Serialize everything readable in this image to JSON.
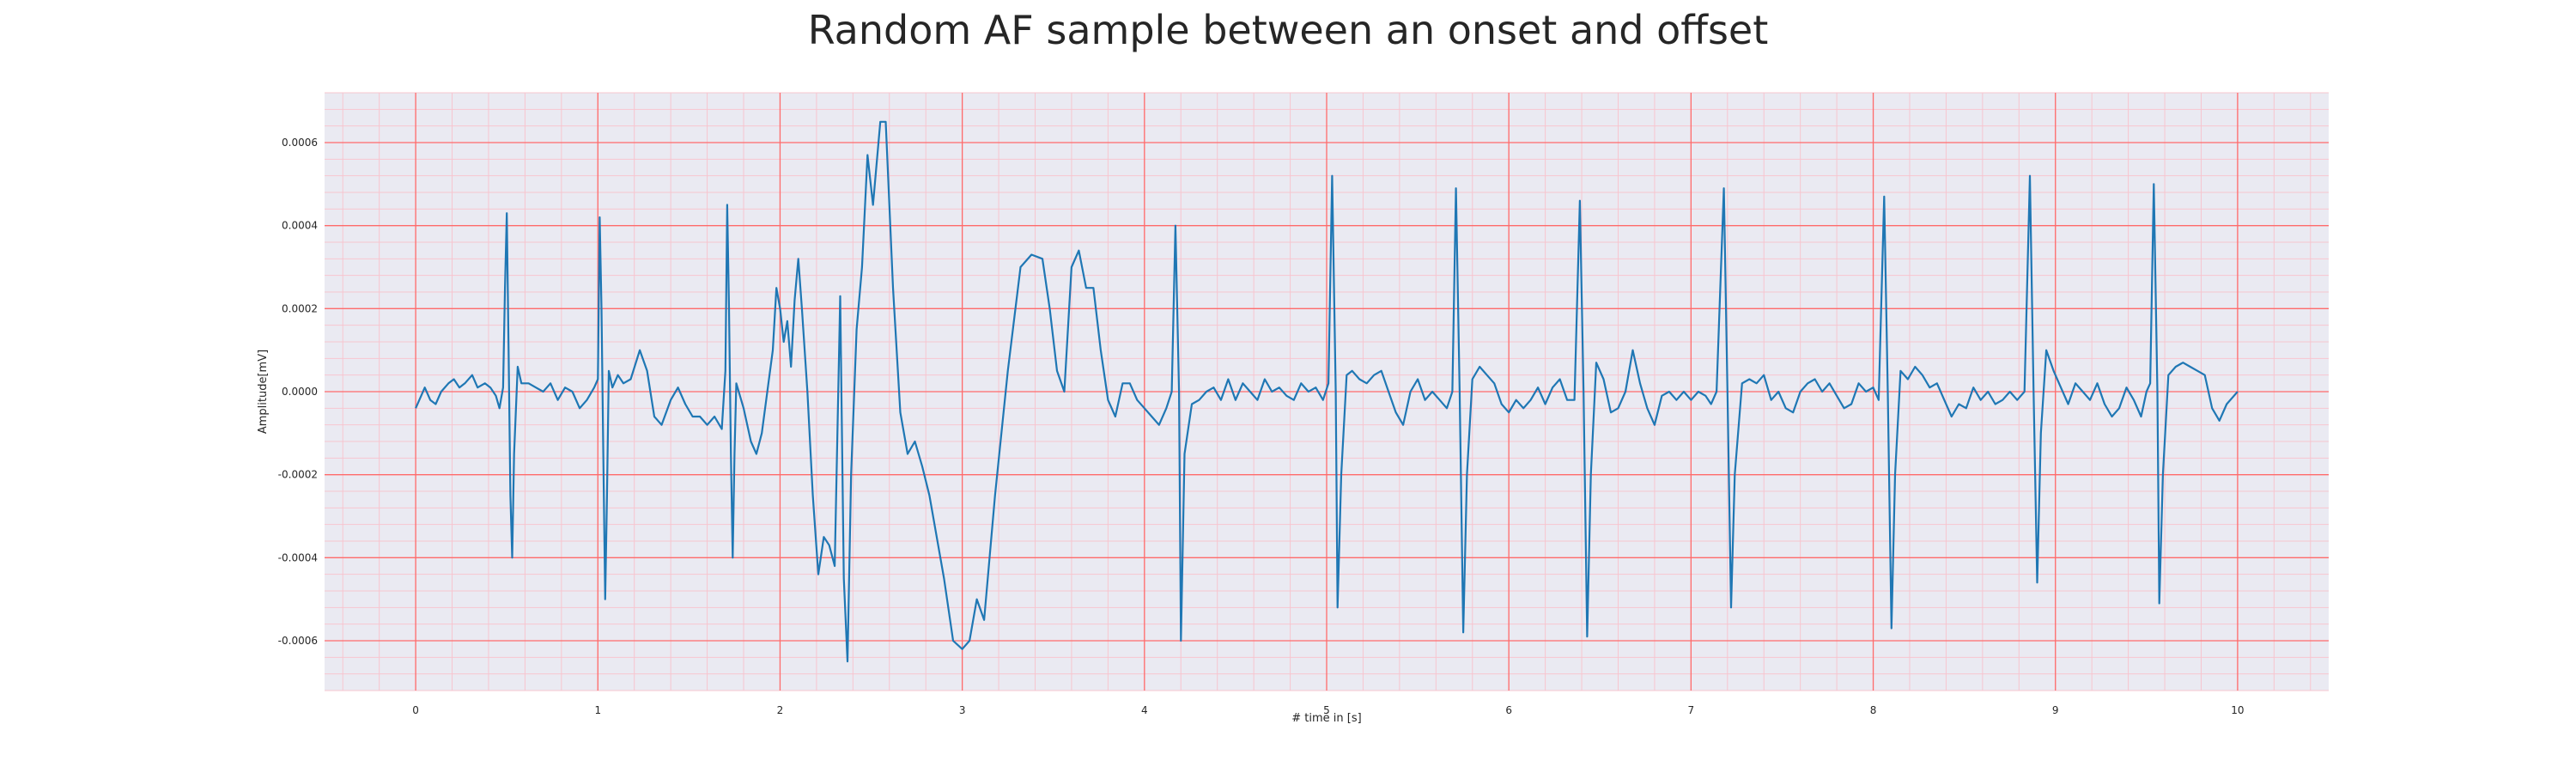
{
  "chart_data": {
    "type": "line",
    "title": "Random AF sample between an onset and offset",
    "xlabel": "# time in [s]",
    "ylabel": "Amplitude[mV]",
    "xlim": [
      -0.5,
      10.5
    ],
    "ylim": [
      -0.00072,
      0.00072
    ],
    "x_ticks": [
      0,
      1,
      2,
      3,
      4,
      5,
      6,
      7,
      8,
      9,
      10
    ],
    "x_tick_labels": [
      "0",
      "1",
      "2",
      "3",
      "4",
      "5",
      "6",
      "7",
      "8",
      "9",
      "10"
    ],
    "y_ticks": [
      -0.0006,
      -0.0004,
      -0.0002,
      0.0,
      0.0002,
      0.0004,
      0.0006
    ],
    "y_tick_labels": [
      "-0.0006",
      "-0.0004",
      "-0.0002",
      "0.0000",
      "0.0002",
      "0.0004",
      "0.0006"
    ],
    "grid": true,
    "minor_grid": true,
    "colors": {
      "plot_background": "#eaeaf2",
      "major_grid": "#ff6b6b",
      "minor_grid": "#f7c5cf",
      "line": "#1f77b4"
    },
    "series": [
      {
        "points": [
          [
            0.0,
            -4e-05
          ],
          [
            0.03,
            -1e-05
          ],
          [
            0.05,
            1e-05
          ],
          [
            0.08,
            -2e-05
          ],
          [
            0.11,
            -3e-05
          ],
          [
            0.14,
            0.0
          ],
          [
            0.18,
            2e-05
          ],
          [
            0.21,
            3e-05
          ],
          [
            0.24,
            1e-05
          ],
          [
            0.27,
            2e-05
          ],
          [
            0.31,
            4e-05
          ],
          [
            0.34,
            1e-05
          ],
          [
            0.38,
            2e-05
          ],
          [
            0.41,
            1e-05
          ],
          [
            0.44,
            -1e-05
          ],
          [
            0.46,
            -4e-05
          ],
          [
            0.48,
            1e-05
          ],
          [
            0.49,
            0.00025
          ],
          [
            0.5,
            0.00043
          ],
          [
            0.51,
            0.0001
          ],
          [
            0.52,
            -0.00025
          ],
          [
            0.53,
            -0.0004
          ],
          [
            0.54,
            -0.00015
          ],
          [
            0.56,
            6e-05
          ],
          [
            0.58,
            2e-05
          ],
          [
            0.62,
            2e-05
          ],
          [
            0.66,
            1e-05
          ],
          [
            0.7,
            0.0
          ],
          [
            0.74,
            2e-05
          ],
          [
            0.78,
            -2e-05
          ],
          [
            0.82,
            1e-05
          ],
          [
            0.86,
            0.0
          ],
          [
            0.9,
            -4e-05
          ],
          [
            0.94,
            -2e-05
          ],
          [
            0.98,
            1e-05
          ],
          [
            1.0,
            3e-05
          ],
          [
            1.01,
            0.00042
          ],
          [
            1.02,
            0.0002
          ],
          [
            1.03,
            -0.00015
          ],
          [
            1.04,
            -0.0005
          ],
          [
            1.05,
            -0.00025
          ],
          [
            1.06,
            5e-05
          ],
          [
            1.08,
            1e-05
          ],
          [
            1.11,
            4e-05
          ],
          [
            1.14,
            2e-05
          ],
          [
            1.18,
            3e-05
          ],
          [
            1.23,
            0.0001
          ],
          [
            1.27,
            5e-05
          ],
          [
            1.31,
            -6e-05
          ],
          [
            1.35,
            -8e-05
          ],
          [
            1.4,
            -2e-05
          ],
          [
            1.44,
            1e-05
          ],
          [
            1.48,
            -3e-05
          ],
          [
            1.52,
            -6e-05
          ],
          [
            1.56,
            -6e-05
          ],
          [
            1.6,
            -8e-05
          ],
          [
            1.64,
            -6e-05
          ],
          [
            1.68,
            -9e-05
          ],
          [
            1.7,
            5e-05
          ],
          [
            1.71,
            0.00045
          ],
          [
            1.72,
            0.0002
          ],
          [
            1.73,
            -0.00015
          ],
          [
            1.74,
            -0.0004
          ],
          [
            1.75,
            -0.00015
          ],
          [
            1.76,
            2e-05
          ],
          [
            1.8,
            -4e-05
          ],
          [
            1.84,
            -0.00012
          ],
          [
            1.87,
            -0.00015
          ],
          [
            1.9,
            -0.0001
          ],
          [
            1.93,
            0.0
          ],
          [
            1.96,
            0.0001
          ],
          [
            1.98,
            0.00025
          ],
          [
            2.0,
            0.0002
          ],
          [
            2.02,
            0.00012
          ],
          [
            2.04,
            0.00017
          ],
          [
            2.06,
            6e-05
          ],
          [
            2.08,
            0.00022
          ],
          [
            2.1,
            0.00032
          ],
          [
            2.12,
            0.0002
          ],
          [
            2.15,
            0.0
          ],
          [
            2.18,
            -0.00025
          ],
          [
            2.21,
            -0.00044
          ],
          [
            2.24,
            -0.00035
          ],
          [
            2.27,
            -0.00037
          ],
          [
            2.3,
            -0.00042
          ],
          [
            2.33,
            0.00023
          ],
          [
            2.35,
            -0.00045
          ],
          [
            2.37,
            -0.00065
          ],
          [
            2.39,
            -0.0002
          ],
          [
            2.42,
            0.00015
          ],
          [
            2.45,
            0.0003
          ],
          [
            2.48,
            0.00057
          ],
          [
            2.51,
            0.00045
          ],
          [
            2.55,
            0.00065
          ],
          [
            2.58,
            0.00065
          ],
          [
            2.62,
            0.00025
          ],
          [
            2.66,
            -5e-05
          ],
          [
            2.7,
            -0.00015
          ],
          [
            2.74,
            -0.00012
          ],
          [
            2.78,
            -0.00018
          ],
          [
            2.82,
            -0.00025
          ],
          [
            2.86,
            -0.00035
          ],
          [
            2.9,
            -0.00045
          ],
          [
            2.95,
            -0.0006
          ],
          [
            3.0,
            -0.00062
          ],
          [
            3.04,
            -0.0006
          ],
          [
            3.08,
            -0.0005
          ],
          [
            3.12,
            -0.00055
          ],
          [
            3.18,
            -0.00025
          ],
          [
            3.25,
            5e-05
          ],
          [
            3.32,
            0.0003
          ],
          [
            3.38,
            0.00033
          ],
          [
            3.44,
            0.00032
          ],
          [
            3.48,
            0.0002
          ],
          [
            3.52,
            5e-05
          ],
          [
            3.56,
            0.0
          ],
          [
            3.6,
            0.0003
          ],
          [
            3.64,
            0.00034
          ],
          [
            3.68,
            0.00025
          ],
          [
            3.72,
            0.00025
          ],
          [
            3.76,
            0.0001
          ],
          [
            3.8,
            -2e-05
          ],
          [
            3.84,
            -6e-05
          ],
          [
            3.88,
            2e-05
          ],
          [
            3.92,
            2e-05
          ],
          [
            3.96,
            -2e-05
          ],
          [
            4.0,
            -4e-05
          ],
          [
            4.04,
            -6e-05
          ],
          [
            4.08,
            -8e-05
          ],
          [
            4.12,
            -4e-05
          ],
          [
            4.15,
            0.0
          ],
          [
            4.17,
            0.0004
          ],
          [
            4.19,
            0.0
          ],
          [
            4.2,
            -0.0006
          ],
          [
            4.22,
            -0.00015
          ],
          [
            4.26,
            -3e-05
          ],
          [
            4.3,
            -2e-05
          ],
          [
            4.34,
            0.0
          ],
          [
            4.38,
            1e-05
          ],
          [
            4.42,
            -2e-05
          ],
          [
            4.46,
            3e-05
          ],
          [
            4.5,
            -2e-05
          ],
          [
            4.54,
            2e-05
          ],
          [
            4.58,
            0.0
          ],
          [
            4.62,
            -2e-05
          ],
          [
            4.66,
            3e-05
          ],
          [
            4.7,
            0.0
          ],
          [
            4.74,
            1e-05
          ],
          [
            4.78,
            -1e-05
          ],
          [
            4.82,
            -2e-05
          ],
          [
            4.86,
            2e-05
          ],
          [
            4.9,
            0.0
          ],
          [
            4.94,
            1e-05
          ],
          [
            4.98,
            -2e-05
          ],
          [
            5.01,
            2e-05
          ],
          [
            5.03,
            0.00052
          ],
          [
            5.05,
            0.0
          ],
          [
            5.06,
            -0.00052
          ],
          [
            5.08,
            -0.0002
          ],
          [
            5.11,
            4e-05
          ],
          [
            5.14,
            5e-05
          ],
          [
            5.18,
            3e-05
          ],
          [
            5.22,
            2e-05
          ],
          [
            5.26,
            4e-05
          ],
          [
            5.3,
            5e-05
          ],
          [
            5.34,
            0.0
          ],
          [
            5.38,
            -5e-05
          ],
          [
            5.42,
            -8e-05
          ],
          [
            5.46,
            0.0
          ],
          [
            5.5,
            3e-05
          ],
          [
            5.54,
            -2e-05
          ],
          [
            5.58,
            0.0
          ],
          [
            5.62,
            -2e-05
          ],
          [
            5.66,
            -4e-05
          ],
          [
            5.69,
            0.0
          ],
          [
            5.71,
            0.00049
          ],
          [
            5.73,
            0.0
          ],
          [
            5.75,
            -0.00058
          ],
          [
            5.77,
            -0.0002
          ],
          [
            5.8,
            3e-05
          ],
          [
            5.84,
            6e-05
          ],
          [
            5.88,
            4e-05
          ],
          [
            5.92,
            2e-05
          ],
          [
            5.96,
            -3e-05
          ],
          [
            6.0,
            -5e-05
          ],
          [
            6.04,
            -2e-05
          ],
          [
            6.08,
            -4e-05
          ],
          [
            6.12,
            -2e-05
          ],
          [
            6.16,
            1e-05
          ],
          [
            6.2,
            -3e-05
          ],
          [
            6.24,
            1e-05
          ],
          [
            6.28,
            3e-05
          ],
          [
            6.32,
            -2e-05
          ],
          [
            6.36,
            -2e-05
          ],
          [
            6.39,
            0.00046
          ],
          [
            6.41,
            0.0
          ],
          [
            6.43,
            -0.00059
          ],
          [
            6.45,
            -0.0002
          ],
          [
            6.48,
            7e-05
          ],
          [
            6.52,
            3e-05
          ],
          [
            6.56,
            -5e-05
          ],
          [
            6.6,
            -4e-05
          ],
          [
            6.64,
            0.0
          ],
          [
            6.68,
            0.0001
          ],
          [
            6.72,
            2e-05
          ],
          [
            6.76,
            -4e-05
          ],
          [
            6.8,
            -8e-05
          ],
          [
            6.84,
            -1e-05
          ],
          [
            6.88,
            0.0
          ],
          [
            6.92,
            -2e-05
          ],
          [
            6.96,
            0.0
          ],
          [
            7.0,
            -2e-05
          ],
          [
            7.04,
            0.0
          ],
          [
            7.08,
            -1e-05
          ],
          [
            7.11,
            -3e-05
          ],
          [
            7.14,
            0.0
          ],
          [
            7.18,
            0.00049
          ],
          [
            7.2,
            0.0
          ],
          [
            7.22,
            -0.00052
          ],
          [
            7.24,
            -0.0002
          ],
          [
            7.28,
            2e-05
          ],
          [
            7.32,
            3e-05
          ],
          [
            7.36,
            2e-05
          ],
          [
            7.4,
            4e-05
          ],
          [
            7.44,
            -2e-05
          ],
          [
            7.48,
            0.0
          ],
          [
            7.52,
            -4e-05
          ],
          [
            7.56,
            -5e-05
          ],
          [
            7.6,
            0.0
          ],
          [
            7.64,
            2e-05
          ],
          [
            7.68,
            3e-05
          ],
          [
            7.72,
            0.0
          ],
          [
            7.76,
            2e-05
          ],
          [
            7.8,
            -1e-05
          ],
          [
            7.84,
            -4e-05
          ],
          [
            7.88,
            -3e-05
          ],
          [
            7.92,
            2e-05
          ],
          [
            7.96,
            0.0
          ],
          [
            8.0,
            1e-05
          ],
          [
            8.03,
            -2e-05
          ],
          [
            8.06,
            0.00047
          ],
          [
            8.08,
            0.0
          ],
          [
            8.1,
            -0.00057
          ],
          [
            8.12,
            -0.0002
          ],
          [
            8.15,
            5e-05
          ],
          [
            8.19,
            3e-05
          ],
          [
            8.23,
            6e-05
          ],
          [
            8.27,
            4e-05
          ],
          [
            8.31,
            1e-05
          ],
          [
            8.35,
            2e-05
          ],
          [
            8.39,
            -2e-05
          ],
          [
            8.43,
            -6e-05
          ],
          [
            8.47,
            -3e-05
          ],
          [
            8.51,
            -4e-05
          ],
          [
            8.55,
            1e-05
          ],
          [
            8.59,
            -2e-05
          ],
          [
            8.63,
            0.0
          ],
          [
            8.67,
            -3e-05
          ],
          [
            8.71,
            -2e-05
          ],
          [
            8.75,
            0.0
          ],
          [
            8.79,
            -2e-05
          ],
          [
            8.83,
            0.0
          ],
          [
            8.86,
            0.00052
          ],
          [
            8.88,
            0.0
          ],
          [
            8.9,
            -0.00046
          ],
          [
            8.92,
            -0.0001
          ],
          [
            8.95,
            0.0001
          ],
          [
            8.99,
            5e-05
          ],
          [
            9.03,
            1e-05
          ],
          [
            9.07,
            -3e-05
          ],
          [
            9.11,
            2e-05
          ],
          [
            9.15,
            0.0
          ],
          [
            9.19,
            -2e-05
          ],
          [
            9.23,
            2e-05
          ],
          [
            9.27,
            -3e-05
          ],
          [
            9.31,
            -6e-05
          ],
          [
            9.35,
            -4e-05
          ],
          [
            9.39,
            1e-05
          ],
          [
            9.43,
            -2e-05
          ],
          [
            9.47,
            -6e-05
          ],
          [
            9.5,
            0.0
          ],
          [
            9.52,
            2e-05
          ],
          [
            9.54,
            0.0005
          ],
          [
            9.56,
            0.0
          ],
          [
            9.57,
            -0.00051
          ],
          [
            9.59,
            -0.0002
          ],
          [
            9.62,
            4e-05
          ],
          [
            9.66,
            6e-05
          ],
          [
            9.7,
            7e-05
          ],
          [
            9.74,
            6e-05
          ],
          [
            9.78,
            5e-05
          ],
          [
            9.82,
            4e-05
          ],
          [
            9.86,
            -4e-05
          ],
          [
            9.9,
            -7e-05
          ],
          [
            9.94,
            -3e-05
          ],
          [
            9.98,
            -1e-05
          ],
          [
            10.0,
            0.0
          ]
        ]
      }
    ]
  }
}
